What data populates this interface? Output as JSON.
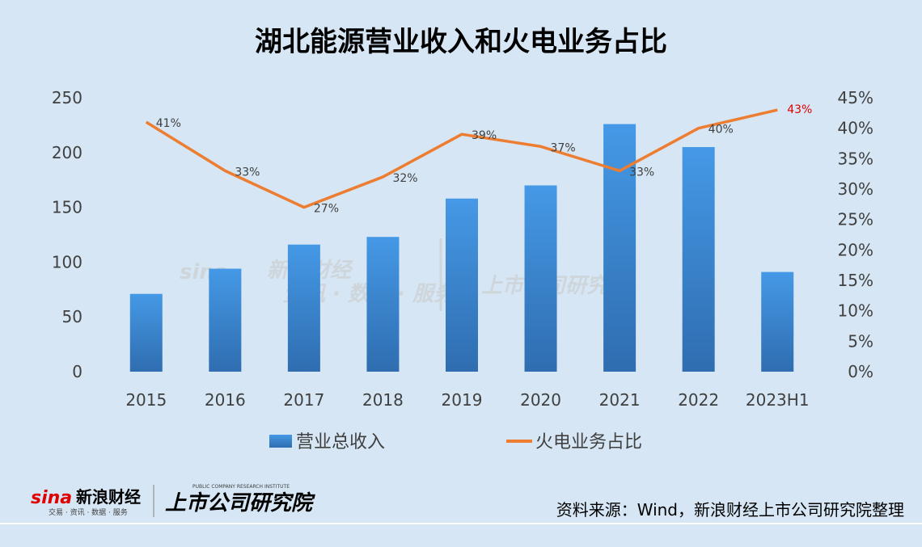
{
  "chart_data": {
    "type": "bar",
    "title": "湖北能源营业收入和火电业务占比",
    "categories": [
      "2015",
      "2016",
      "2017",
      "2018",
      "2019",
      "2020",
      "2021",
      "2022",
      "2023H1"
    ],
    "series": [
      {
        "name": "营业总收入",
        "type": "bar",
        "axis": "left",
        "values": [
          71,
          94,
          116,
          123,
          158,
          170,
          226,
          205,
          91
        ],
        "color": "#3a86d0"
      },
      {
        "name": "火电业务占比",
        "type": "line",
        "axis": "right",
        "values": [
          41,
          33,
          27,
          32,
          39,
          37,
          33,
          40,
          43
        ],
        "labels": [
          "41%",
          "33%",
          "27%",
          "32%",
          "39%",
          "37%",
          "33%",
          "40%",
          "43%"
        ],
        "color": "#ed7d31"
      }
    ],
    "left_axis": {
      "ylim": [
        0,
        250
      ],
      "ticks": [
        "0",
        "50",
        "100",
        "150",
        "200",
        "250"
      ]
    },
    "right_axis": {
      "ylim": [
        0,
        45
      ],
      "ticks": [
        "0%",
        "5%",
        "10%",
        "15%",
        "20%",
        "25%",
        "30%",
        "35%",
        "40%",
        "45%"
      ]
    },
    "highlight_label_color": "#e00000",
    "legend_position": "bottom",
    "grid": false
  },
  "footer": {
    "source": "资料来源：Wind，新浪财经上市公司研究院整理",
    "brand_sina": "新浪财经",
    "brand_sina_tagline": "交易 · 资讯 · 数据 · 服务",
    "brand_sina_logo": "sina",
    "brand_institute": "上市公司研究院",
    "brand_institute_en": "PUBLIC COMPANY RESEARCH INSTITUTE"
  },
  "watermark": {
    "logo": "sina",
    "name": "新浪财经",
    "tagline": "资讯 · 数据 · 服务",
    "institute": "上市公司研究院"
  }
}
